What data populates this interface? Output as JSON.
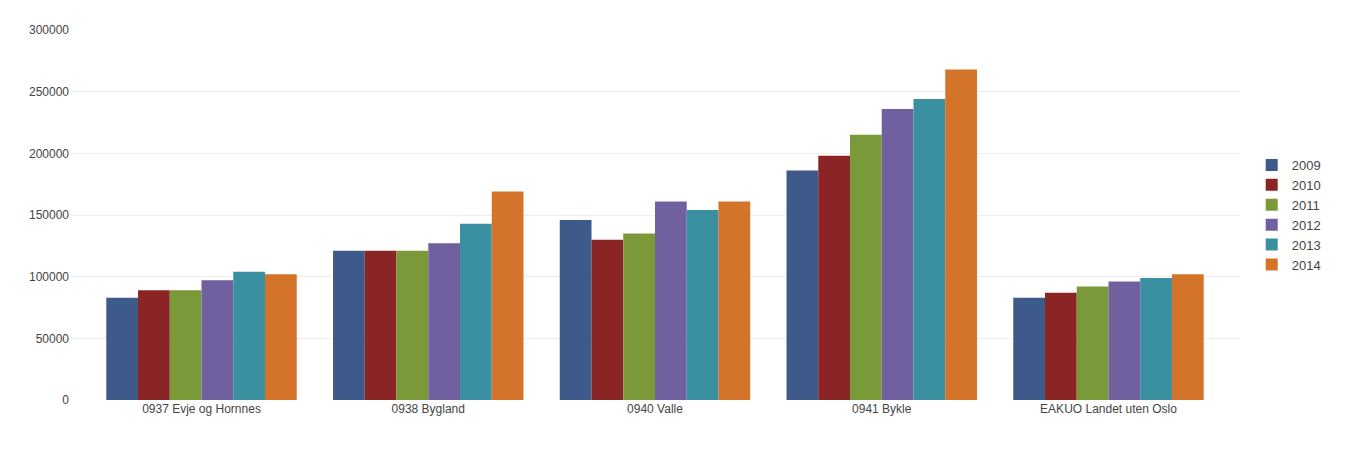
{
  "chart_data": {
    "type": "bar",
    "categories": [
      "0937 Evje og Hornnes",
      "0938 Bygland",
      "0940 Valle",
      "0941 Bykle",
      "EAKUO Landet uten Oslo"
    ],
    "series": [
      {
        "name": "2009",
        "color": "#3d5a8a",
        "values": [
          83000,
          121000,
          146000,
          186000,
          83000
        ]
      },
      {
        "name": "2010",
        "color": "#8b2525",
        "values": [
          89000,
          121000,
          130000,
          198000,
          87000
        ]
      },
      {
        "name": "2011",
        "color": "#7a9a3a",
        "values": [
          89000,
          121000,
          135000,
          215000,
          92000
        ]
      },
      {
        "name": "2012",
        "color": "#7060a0",
        "values": [
          97000,
          127000,
          161000,
          236000,
          96000
        ]
      },
      {
        "name": "2013",
        "color": "#3a8fa0",
        "values": [
          104000,
          143000,
          154000,
          244000,
          99000
        ]
      },
      {
        "name": "2014",
        "color": "#d4742a",
        "values": [
          102000,
          169000,
          161000,
          268000,
          102000
        ]
      }
    ],
    "ylim": [
      0,
      300000
    ],
    "yticks": [
      0,
      50000,
      100000,
      150000,
      200000,
      250000,
      300000
    ],
    "grid": true,
    "legend": "right"
  }
}
